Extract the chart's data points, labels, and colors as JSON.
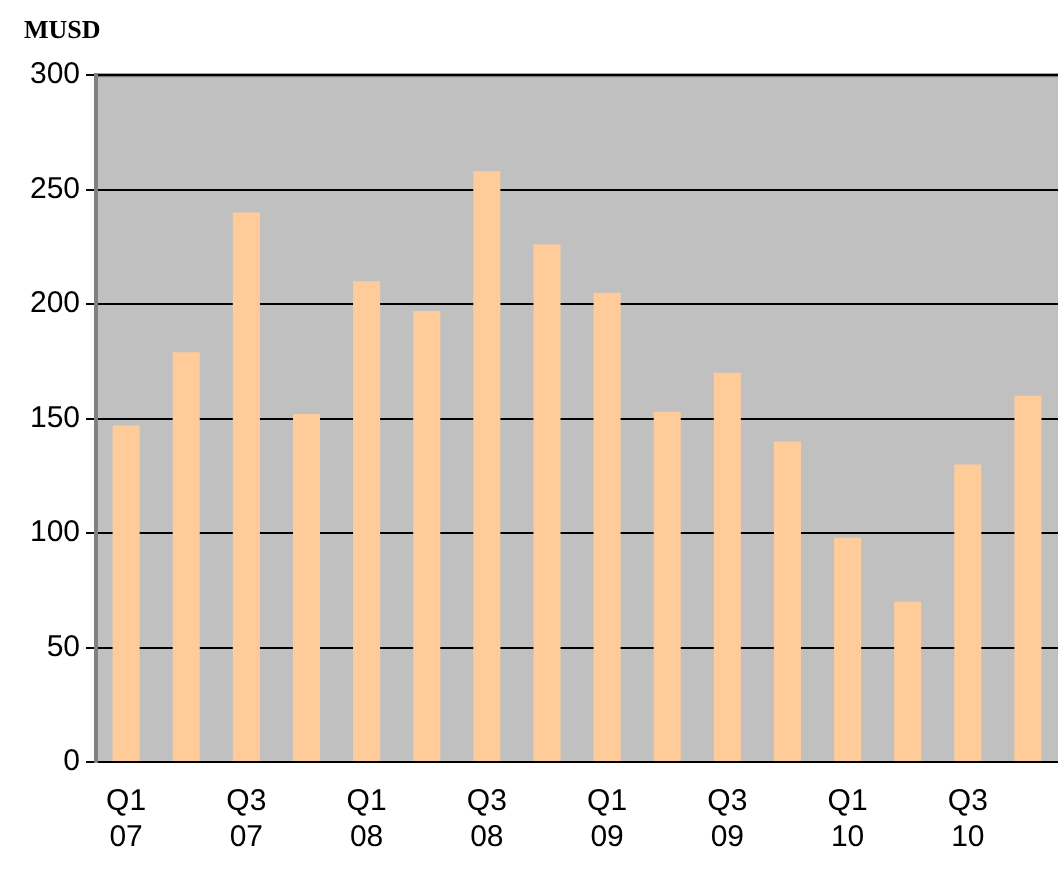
{
  "chart_data": {
    "type": "bar",
    "title": "MUSD",
    "categories": [
      "Q1 07",
      null,
      "Q3 07",
      null,
      "Q1 08",
      null,
      "Q3 08",
      null,
      "Q1 09",
      null,
      "Q3 09",
      null,
      "Q1 10",
      null,
      "Q3 10",
      null
    ],
    "values": [
      147,
      179,
      240,
      152,
      210,
      197,
      258,
      226,
      205,
      153,
      170,
      140,
      98,
      70,
      130,
      160
    ],
    "color": "#ffcc99",
    "ylim": [
      0,
      300
    ],
    "yticks": [
      0,
      50,
      100,
      150,
      200,
      250,
      300
    ],
    "grid": "y",
    "legend": false
  }
}
